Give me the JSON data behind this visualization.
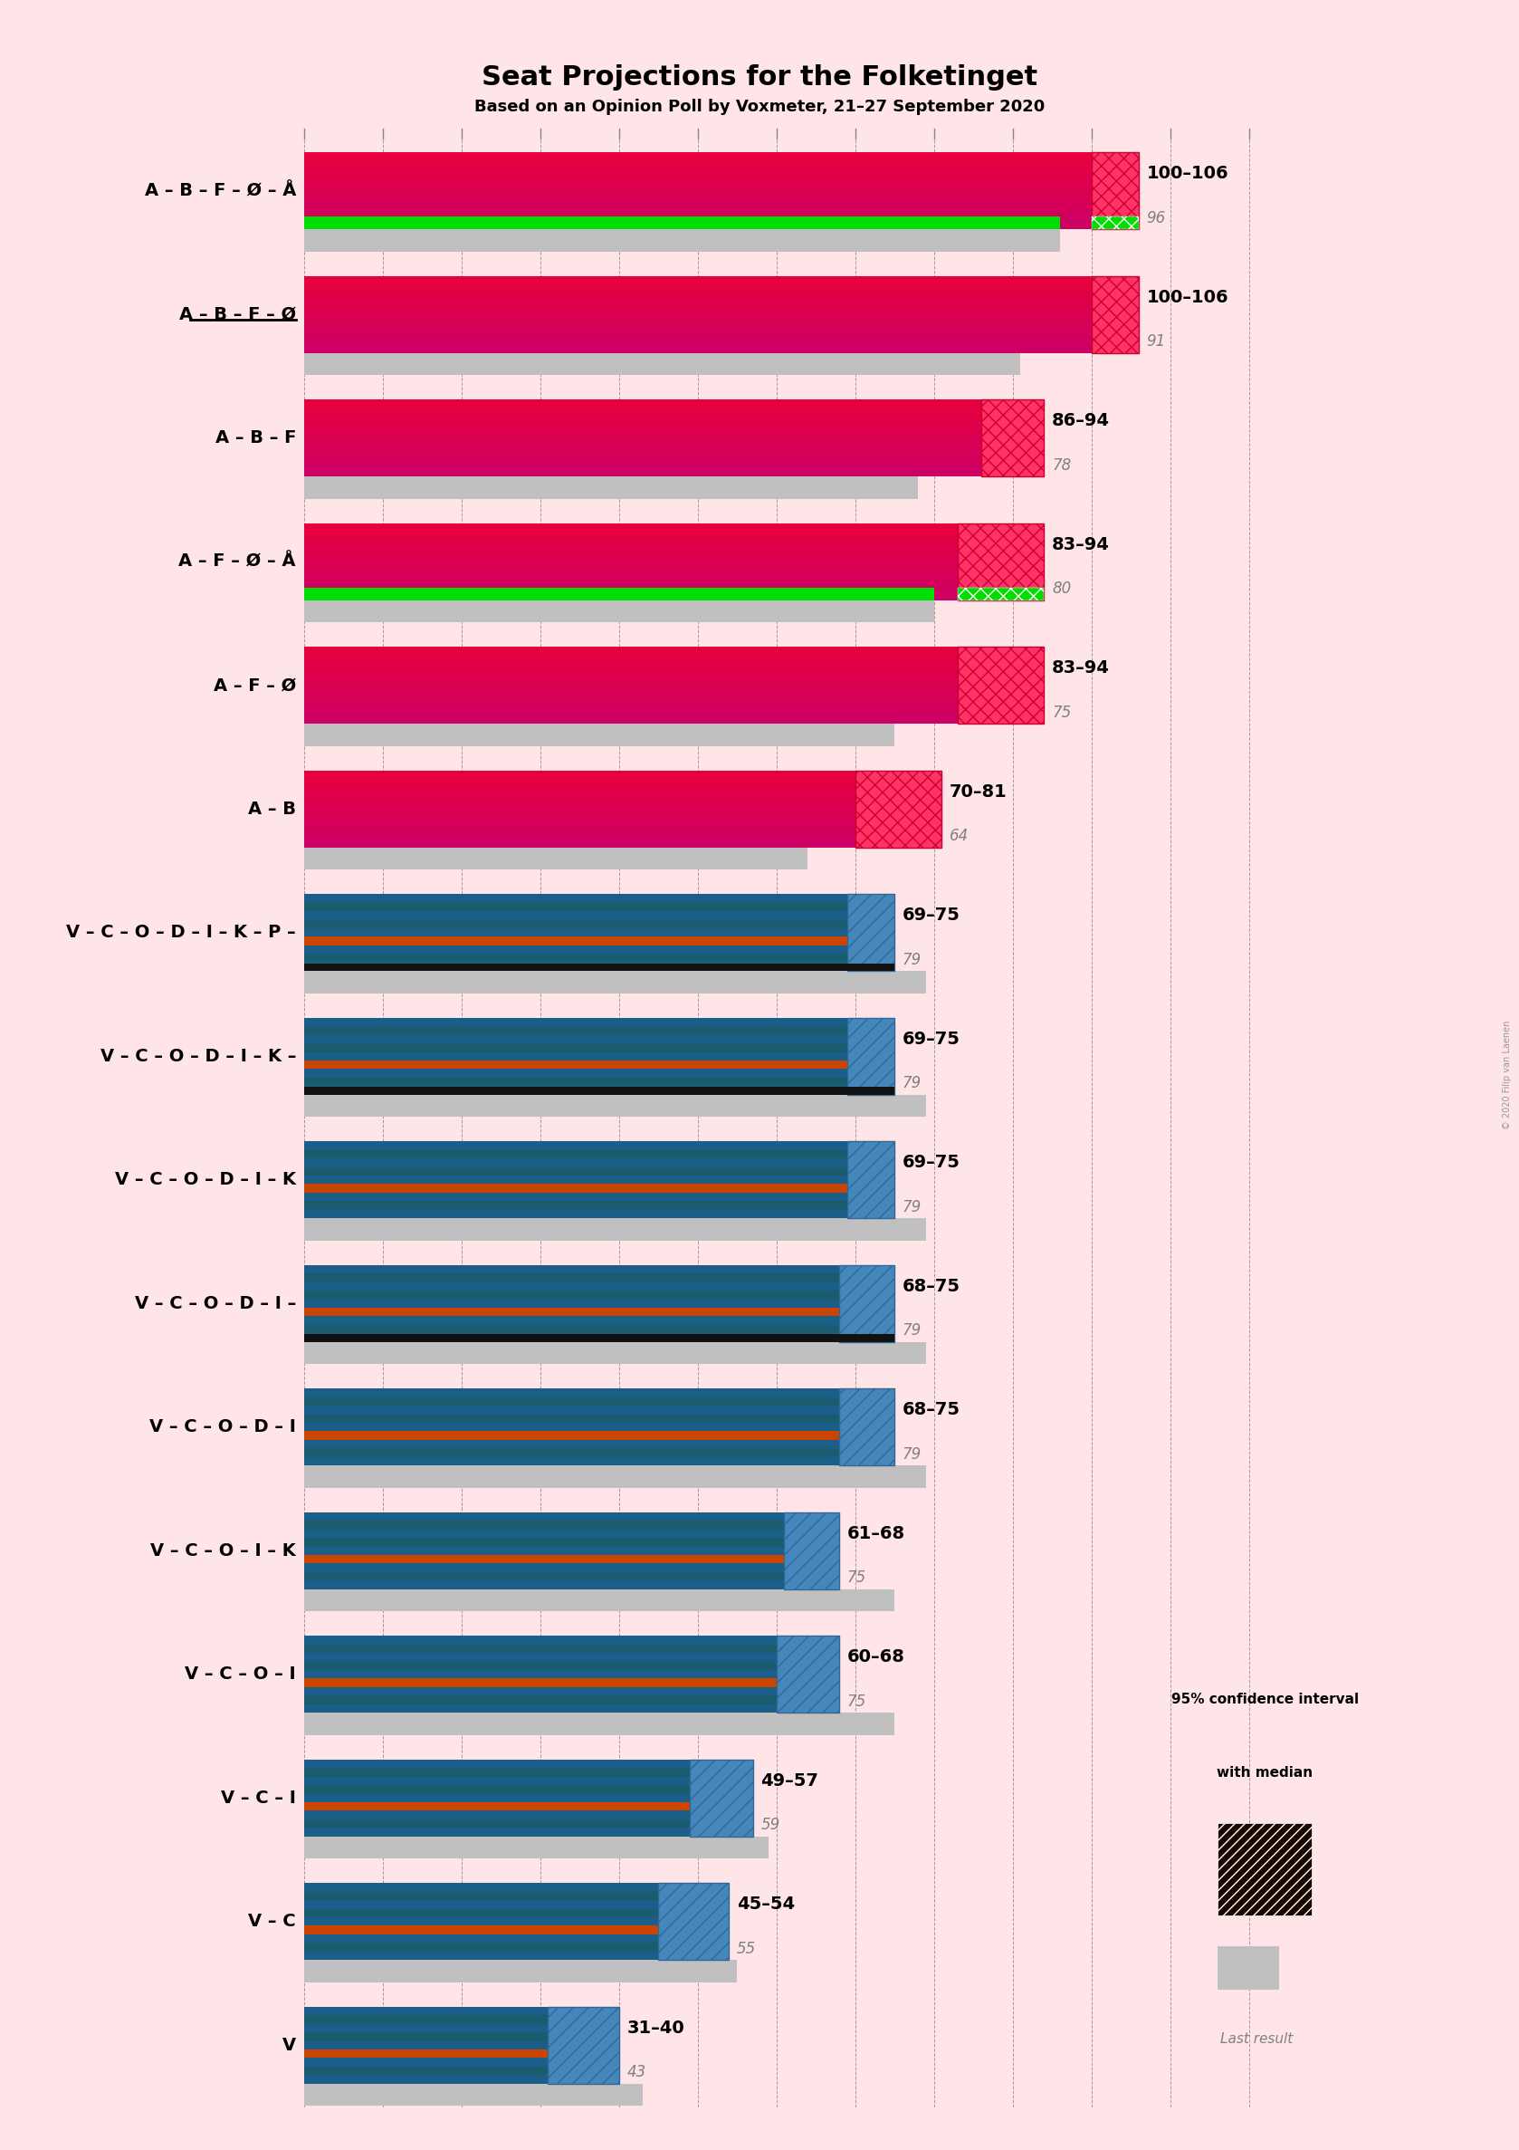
{
  "title": "Seat Projections for the Folketinget",
  "subtitle": "Based on an Opinion Poll by Voxmeter, 21–27 September 2020",
  "background_color": "#FFE4E8",
  "copyright": "© 2020 Filip van Laenen",
  "axis_max": 120,
  "coalitions": [
    {
      "label": "A – B – F – Ø – Å",
      "underline": false,
      "ci_low": 100,
      "ci_high": 106,
      "last_result": 96,
      "type": "left",
      "has_green": true,
      "green_value": 96,
      "has_black": false
    },
    {
      "label": "A – B – F – Ø",
      "underline": true,
      "ci_low": 100,
      "ci_high": 106,
      "last_result": 91,
      "type": "left",
      "has_green": false,
      "green_value": null,
      "has_black": false
    },
    {
      "label": "A – B – F",
      "underline": false,
      "ci_low": 86,
      "ci_high": 94,
      "last_result": 78,
      "type": "left",
      "has_green": false,
      "green_value": null,
      "has_black": false
    },
    {
      "label": "A – F – Ø – Å",
      "underline": false,
      "ci_low": 83,
      "ci_high": 94,
      "last_result": 80,
      "type": "left",
      "has_green": true,
      "green_value": 80,
      "has_black": false
    },
    {
      "label": "A – F – Ø",
      "underline": false,
      "ci_low": 83,
      "ci_high": 94,
      "last_result": 75,
      "type": "left",
      "has_green": false,
      "green_value": null,
      "has_black": false
    },
    {
      "label": "A – B",
      "underline": false,
      "ci_low": 70,
      "ci_high": 81,
      "last_result": 64,
      "type": "left",
      "has_green": false,
      "green_value": null,
      "has_black": false
    },
    {
      "label": "V – C – O – D – I – K – P –",
      "underline": false,
      "ci_low": 69,
      "ci_high": 75,
      "last_result": 79,
      "type": "right",
      "has_green": false,
      "green_value": null,
      "has_black": true
    },
    {
      "label": "V – C – O – D – I – K –",
      "underline": false,
      "ci_low": 69,
      "ci_high": 75,
      "last_result": 79,
      "type": "right",
      "has_green": false,
      "green_value": null,
      "has_black": true
    },
    {
      "label": "V – C – O – D – I – K",
      "underline": false,
      "ci_low": 69,
      "ci_high": 75,
      "last_result": 79,
      "type": "right",
      "has_green": false,
      "green_value": null,
      "has_black": false
    },
    {
      "label": "V – C – O – D – I –",
      "underline": false,
      "ci_low": 68,
      "ci_high": 75,
      "last_result": 79,
      "type": "right",
      "has_green": false,
      "green_value": null,
      "has_black": true
    },
    {
      "label": "V – C – O – D – I",
      "underline": false,
      "ci_low": 68,
      "ci_high": 75,
      "last_result": 79,
      "type": "right",
      "has_green": false,
      "green_value": null,
      "has_black": false
    },
    {
      "label": "V – C – O – I – K",
      "underline": false,
      "ci_low": 61,
      "ci_high": 68,
      "last_result": 75,
      "type": "right",
      "has_green": false,
      "green_value": null,
      "has_black": false
    },
    {
      "label": "V – C – O – I",
      "underline": false,
      "ci_low": 60,
      "ci_high": 68,
      "last_result": 75,
      "type": "right",
      "has_green": false,
      "green_value": null,
      "has_black": false
    },
    {
      "label": "V – C – I",
      "underline": false,
      "ci_low": 49,
      "ci_high": 57,
      "last_result": 59,
      "type": "right",
      "has_green": false,
      "green_value": null,
      "has_black": false
    },
    {
      "label": "V – C",
      "underline": false,
      "ci_low": 45,
      "ci_high": 54,
      "last_result": 55,
      "type": "right",
      "has_green": false,
      "green_value": null,
      "has_black": false
    },
    {
      "label": "V",
      "underline": false,
      "ci_low": 31,
      "ci_high": 40,
      "last_result": 43,
      "type": "right",
      "has_green": false,
      "green_value": null,
      "has_black": false
    }
  ],
  "left_color_top": "#E8003C",
  "left_color_bot": "#CC0066",
  "left_ci_face": "#FF3366",
  "left_ci_edge": "#CC0033",
  "right_stripe_colors": [
    "#1B5E8A",
    "#1A5C6E",
    "#1B5E8A",
    "#1A5C6E",
    "#1B5E8A",
    "#CC4400",
    "#1B5E8A",
    "#1A5C6E",
    "#1B5E8A"
  ],
  "right_ci_face": "#4488BB",
  "right_ci_edge": "#336699",
  "green_color": "#00DD00",
  "gray_bar_color": "#C0C0C0",
  "black_color": "#111111",
  "legend_ci_face": "#111111",
  "legend_ci_hatch_color": "white"
}
